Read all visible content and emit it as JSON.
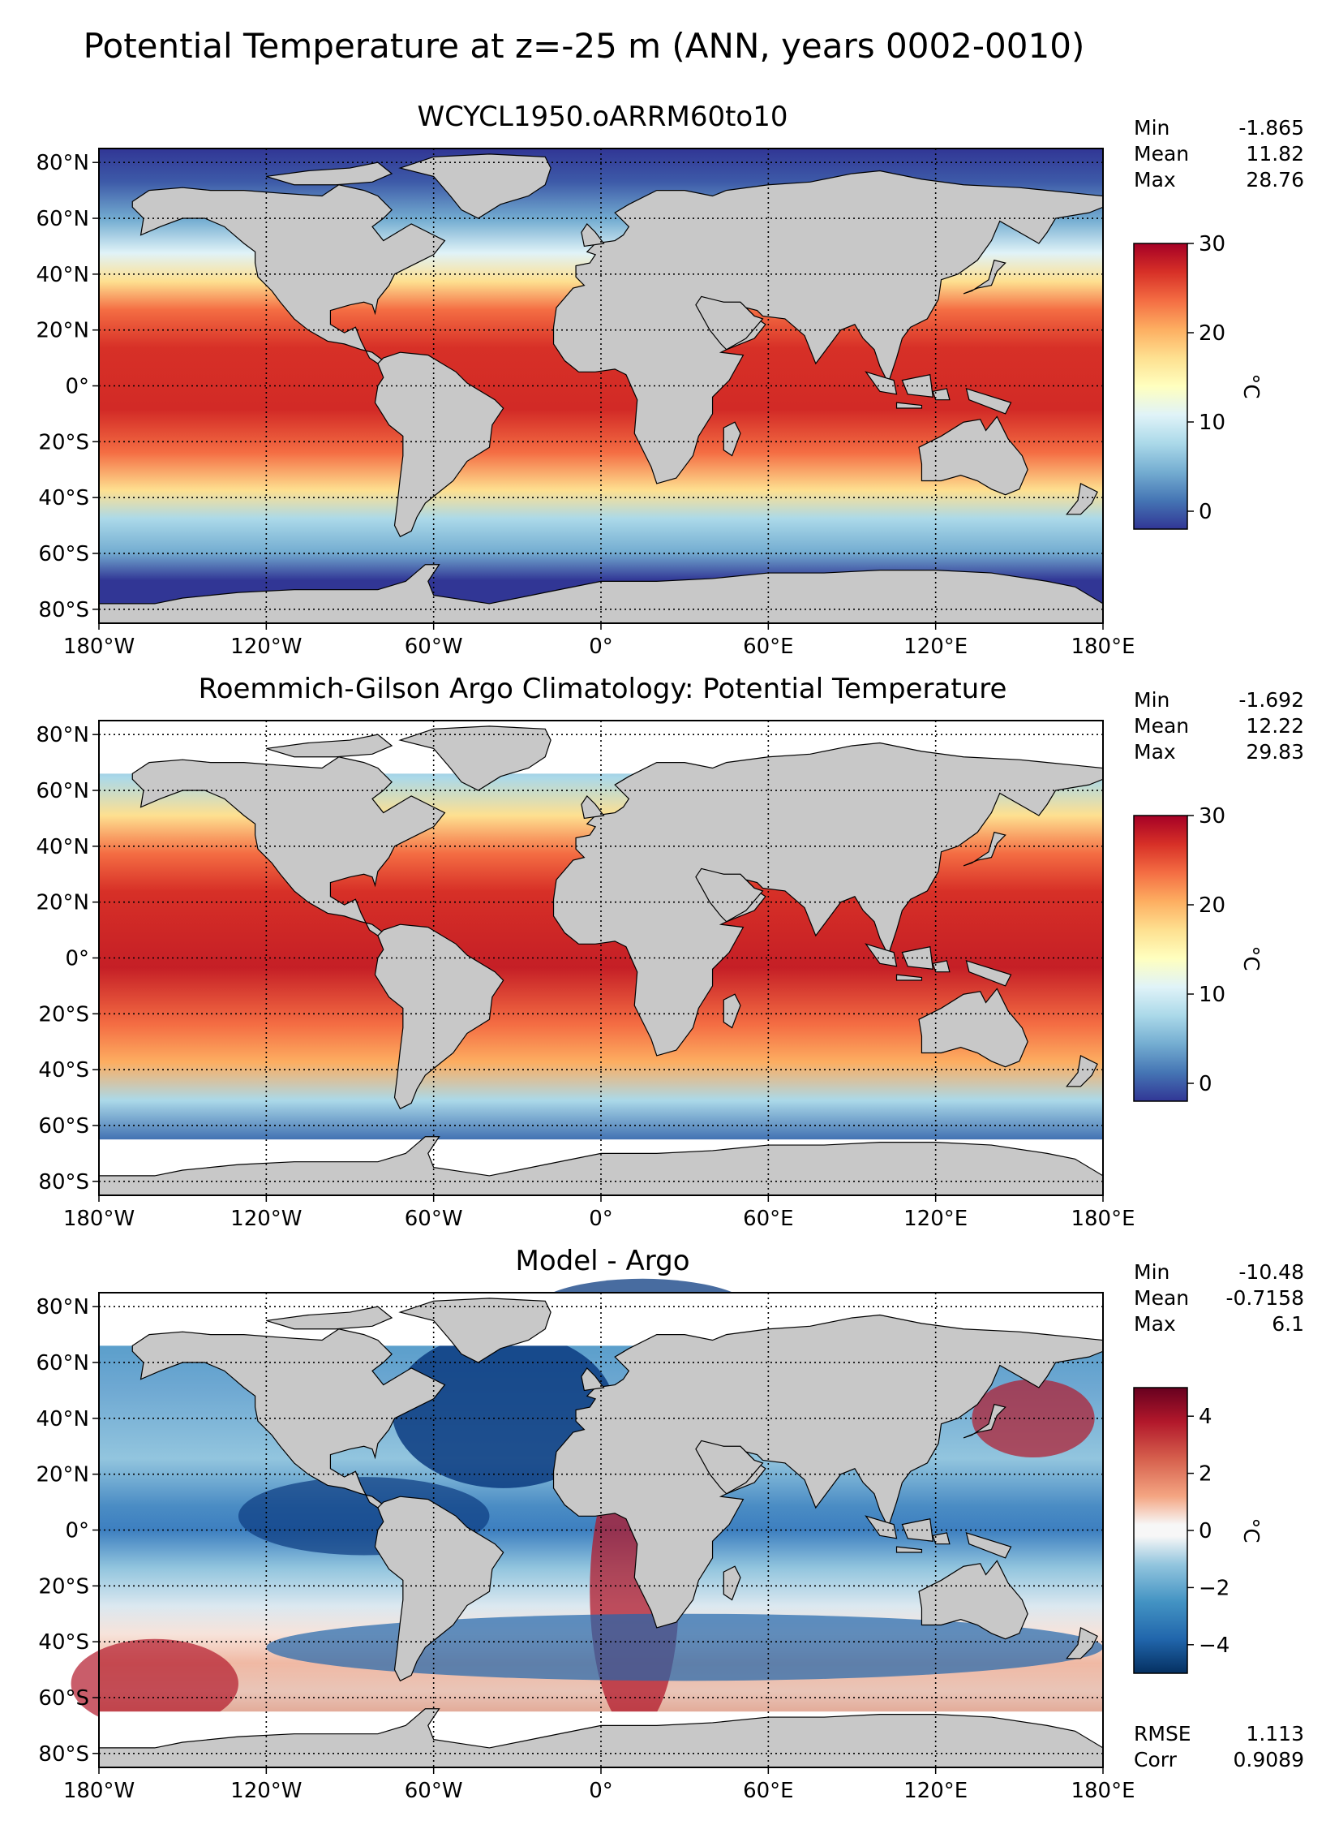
{
  "figure": {
    "suptitle": "Potential Temperature at z=-25 m (ANN, years 0002-0010)"
  },
  "colors": {
    "land": "#c8c8c8",
    "nodata": "#ffffff",
    "coast": "#000000",
    "grid": "#000000"
  },
  "chart_data": [
    {
      "type": "heatmap",
      "title": "WCYCL1950.oARRM60to10",
      "xlabel": "",
      "ylabel": "",
      "x_ticks": [
        "180°W",
        "120°W",
        "60°W",
        "0°",
        "60°E",
        "120°E",
        "180°E"
      ],
      "y_ticks": [
        "80°N",
        "60°N",
        "40°N",
        "20°N",
        "0°",
        "20°S",
        "40°S",
        "60°S",
        "80°S"
      ],
      "xlim": [
        -180,
        180
      ],
      "ylim": [
        -85,
        85
      ],
      "grid": true,
      "colormap": "RdYlBu_r",
      "clim": [
        -2,
        30
      ],
      "colorbar_ticks": [
        "0",
        "10",
        "20",
        "30"
      ],
      "colorbar_label": "°C",
      "stats": [
        {
          "label": "Min",
          "value": "-1.865"
        },
        {
          "label": "Mean",
          "value": "11.82"
        },
        {
          "label": "Max",
          "value": "28.76"
        }
      ],
      "extra_stats": []
    },
    {
      "type": "heatmap",
      "title": "Roemmich-Gilson Argo Climatology: Potential Temperature",
      "xlabel": "",
      "ylabel": "",
      "x_ticks": [
        "180°W",
        "120°W",
        "60°W",
        "0°",
        "60°E",
        "120°E",
        "180°E"
      ],
      "y_ticks": [
        "80°N",
        "60°N",
        "40°N",
        "20°N",
        "0°",
        "20°S",
        "40°S",
        "60°S",
        "80°S"
      ],
      "xlim": [
        -180,
        180
      ],
      "ylim": [
        -85,
        85
      ],
      "grid": true,
      "colormap": "RdYlBu_r",
      "clim": [
        -2,
        30
      ],
      "colorbar_ticks": [
        "0",
        "10",
        "20",
        "30"
      ],
      "colorbar_label": "°C",
      "stats": [
        {
          "label": "Min",
          "value": "-1.692"
        },
        {
          "label": "Mean",
          "value": "12.22"
        },
        {
          "label": "Max",
          "value": "29.83"
        }
      ],
      "extra_stats": []
    },
    {
      "type": "heatmap",
      "title": "Model - Argo",
      "xlabel": "",
      "ylabel": "",
      "x_ticks": [
        "180°W",
        "120°W",
        "60°W",
        "0°",
        "60°E",
        "120°E",
        "180°E"
      ],
      "y_ticks": [
        "80°N",
        "60°N",
        "40°N",
        "20°N",
        "0°",
        "20°S",
        "40°S",
        "60°S",
        "80°S"
      ],
      "xlim": [
        -180,
        180
      ],
      "ylim": [
        -85,
        85
      ],
      "grid": true,
      "colormap": "RdBu_r",
      "clim": [
        -5,
        5
      ],
      "colorbar_ticks": [
        "4",
        "2",
        "0",
        "−2",
        "−4"
      ],
      "colorbar_label": "°C",
      "stats": [
        {
          "label": "Min",
          "value": "-10.48"
        },
        {
          "label": "Mean",
          "value": "-0.7158"
        },
        {
          "label": "Max",
          "value": "6.1"
        }
      ],
      "extra_stats": [
        {
          "label": "RMSE",
          "value": "1.113"
        },
        {
          "label": "Corr",
          "value": "0.9089"
        }
      ]
    }
  ]
}
